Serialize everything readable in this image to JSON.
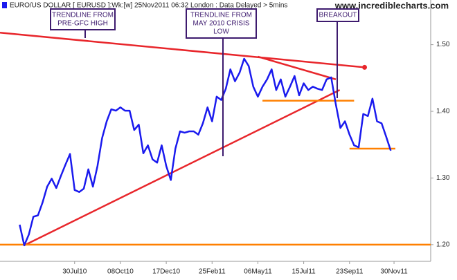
{
  "chart_data": {
    "type": "line",
    "title": "EURO/US DOLLAR [ EURUSD ]:Wk:[w]  25Nov2011 06:32 London : Data Delayed > 5mins",
    "site": "www.incrediblecharts.com",
    "x": [
      "2010-05-07",
      "2010-05-14",
      "2010-05-21",
      "2010-05-28",
      "2010-06-04",
      "2010-06-11",
      "2010-06-18",
      "2010-06-25",
      "2010-07-02",
      "2010-07-09",
      "2010-07-16",
      "2010-07-23",
      "2010-07-30",
      "2010-08-06",
      "2010-08-13",
      "2010-08-20",
      "2010-08-27",
      "2010-09-03",
      "2010-09-10",
      "2010-09-17",
      "2010-09-24",
      "2010-10-01",
      "2010-10-08",
      "2010-10-15",
      "2010-10-22",
      "2010-10-29",
      "2010-11-05",
      "2010-11-12",
      "2010-11-19",
      "2010-11-26",
      "2010-12-03",
      "2010-12-10",
      "2010-12-17",
      "2010-12-24",
      "2010-12-31",
      "2011-01-07",
      "2011-01-14",
      "2011-01-21",
      "2011-01-28",
      "2011-02-04",
      "2011-02-11",
      "2011-02-18",
      "2011-02-25",
      "2011-03-04",
      "2011-03-11",
      "2011-03-18",
      "2011-03-25",
      "2011-04-01",
      "2011-04-08",
      "2011-04-15",
      "2011-04-22",
      "2011-04-29",
      "2011-05-06",
      "2011-05-13",
      "2011-05-20",
      "2011-05-27",
      "2011-06-03",
      "2011-06-10",
      "2011-06-17",
      "2011-06-24",
      "2011-07-01",
      "2011-07-08",
      "2011-07-15",
      "2011-07-22",
      "2011-07-29",
      "2011-08-05",
      "2011-08-12",
      "2011-08-19",
      "2011-08-26",
      "2011-09-02",
      "2011-09-09",
      "2011-09-16",
      "2011-09-23",
      "2011-09-30",
      "2011-10-07",
      "2011-10-14",
      "2011-10-21",
      "2011-10-28",
      "2011-11-04",
      "2011-11-11",
      "2011-11-18",
      "2011-11-25"
    ],
    "series": [
      {
        "color": "#1a1aee",
        "values": [
          1.23,
          1.199,
          1.215,
          1.242,
          1.244,
          1.263,
          1.287,
          1.299,
          1.285,
          1.303,
          1.32,
          1.336,
          1.282,
          1.279,
          1.284,
          1.313,
          1.287,
          1.318,
          1.36,
          1.385,
          1.403,
          1.401,
          1.406,
          1.401,
          1.401,
          1.372,
          1.38,
          1.337,
          1.349,
          1.328,
          1.323,
          1.349,
          1.318,
          1.297,
          1.344,
          1.37,
          1.368,
          1.37,
          1.37,
          1.365,
          1.382,
          1.406,
          1.385,
          1.422,
          1.417,
          1.434,
          1.463,
          1.445,
          1.458,
          1.479,
          1.468,
          1.437,
          1.422,
          1.437,
          1.448,
          1.463,
          1.432,
          1.448,
          1.422,
          1.437,
          1.453,
          1.424,
          1.442,
          1.432,
          1.437,
          1.434,
          1.432,
          1.448,
          1.451,
          1.411,
          1.375,
          1.385,
          1.365,
          1.349,
          1.346,
          1.396,
          1.393,
          1.419,
          1.385,
          1.382,
          1.362,
          1.341
        ]
      }
    ],
    "xlim": [
      "2010-04-07",
      "2012-01-25"
    ],
    "xticks": [
      {
        "value": "2010-07-30",
        "label": "30Jul10"
      },
      {
        "value": "2010-10-08",
        "label": "08Oct10"
      },
      {
        "value": "2010-12-17",
        "label": "17Dec10"
      },
      {
        "value": "2011-02-25",
        "label": "25Feb11"
      },
      {
        "value": "2011-05-06",
        "label": "06May11"
      },
      {
        "value": "2011-07-15",
        "label": "15Jul11"
      },
      {
        "value": "2011-09-23",
        "label": "23Sep11"
      },
      {
        "value": "2011-11-30",
        "label": "30Nov11"
      }
    ],
    "ylim": [
      1.175,
      1.567
    ],
    "yticks": [
      {
        "value": 1.2,
        "label": "1.20"
      },
      {
        "value": 1.3,
        "label": "1.30"
      },
      {
        "value": 1.4,
        "label": "1.40"
      },
      {
        "value": 1.5,
        "label": "1.50"
      }
    ],
    "trendlines": [
      {
        "color": "#e8262b",
        "x": [
          "2010-04-07",
          "2011-10-16"
        ],
        "y": [
          1.518,
          1.466
        ]
      },
      {
        "color": "#e8262b",
        "x": [
          "2010-05-14",
          "2011-09-08"
        ],
        "y": [
          1.199,
          1.432
        ]
      },
      {
        "color": "#e8262b",
        "x": [
          "2011-05-06",
          "2011-09-02"
        ],
        "y": [
          1.482,
          1.448
        ]
      },
      {
        "color": "#ff8000",
        "x": [
          "2010-04-07",
          "2012-01-25"
        ],
        "y": [
          1.2,
          1.2
        ]
      },
      {
        "color": "#ff8000",
        "x": [
          "2011-05-13",
          "2011-09-30"
        ],
        "y": [
          1.416,
          1.416
        ]
      },
      {
        "color": "#ff8000",
        "x": [
          "2011-09-23",
          "2011-12-02"
        ],
        "y": [
          1.344,
          1.344
        ]
      }
    ],
    "annotations": [
      {
        "lines": [
          "TRENDLINE FROM",
          "PRE-GFC HIGH"
        ]
      },
      {
        "lines": [
          "TRENDLINE FROM",
          "MAY 2010 CRISIS",
          "LOW"
        ]
      },
      {
        "lines": [
          "BREAKOUT"
        ]
      }
    ]
  }
}
